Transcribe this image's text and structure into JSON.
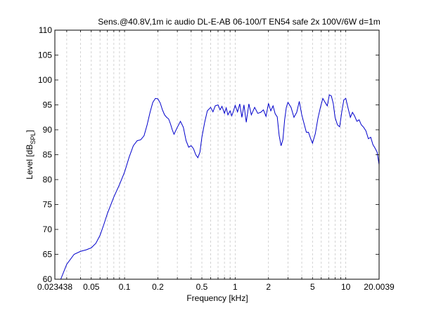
{
  "chart_data": {
    "type": "line",
    "title": "Sens.@40.8V,1m ic audio DL-E-AB 06-100/T EN54 safe 2x 100V/6W d=1m",
    "xlabel": "Frequency [kHz]",
    "ylabel_main": "Level [dB",
    "ylabel_sub": "SPL",
    "ylabel_end": "]",
    "xscale": "log",
    "xlim": [
      0.023438,
      20.0039
    ],
    "ylim": [
      60,
      110
    ],
    "grid": "dashed, x major+minor",
    "x_ticks": [
      0.023438,
      0.05,
      0.1,
      0.2,
      0.5,
      1,
      2,
      5,
      10,
      20.0039
    ],
    "x_tick_labels": [
      "0.023438",
      "0.05",
      "0.1",
      "0.2",
      "0.5",
      "1",
      "2",
      "5",
      "10",
      "20.0039"
    ],
    "y_ticks": [
      60,
      65,
      70,
      75,
      80,
      85,
      90,
      95,
      100,
      105,
      110
    ],
    "y_tick_labels": [
      "60",
      "65",
      "70",
      "75",
      "80",
      "85",
      "90",
      "95",
      "100",
      "105",
      "110"
    ],
    "line_color": "#0000cc",
    "series": [
      {
        "x": [
          0.0265,
          0.03,
          0.035,
          0.04,
          0.045,
          0.05,
          0.055,
          0.06,
          0.065,
          0.07,
          0.08,
          0.09,
          0.1,
          0.11,
          0.12,
          0.13,
          0.14,
          0.15,
          0.16,
          0.17,
          0.18,
          0.19,
          0.2,
          0.21,
          0.22,
          0.23,
          0.24,
          0.25,
          0.26,
          0.27,
          0.28,
          0.3,
          0.32,
          0.34,
          0.36,
          0.38,
          0.4,
          0.42,
          0.44,
          0.46,
          0.48,
          0.5,
          0.53,
          0.56,
          0.6,
          0.63,
          0.66,
          0.7,
          0.73,
          0.76,
          0.8,
          0.83,
          0.86,
          0.9,
          0.93,
          0.96,
          1.0,
          1.05,
          1.1,
          1.15,
          1.2,
          1.26,
          1.33,
          1.4,
          1.5,
          1.6,
          1.7,
          1.8,
          1.9,
          2.0,
          2.1,
          2.2,
          2.3,
          2.4,
          2.5,
          2.6,
          2.7,
          2.8,
          2.9,
          3.0,
          3.2,
          3.4,
          3.6,
          3.8,
          4.0,
          4.2,
          4.4,
          4.6,
          4.8,
          5.0,
          5.3,
          5.6,
          5.9,
          6.2,
          6.5,
          6.8,
          7.1,
          7.4,
          7.7,
          8.0,
          8.4,
          8.8,
          9.2,
          9.6,
          10.0,
          10.5,
          11.0,
          11.5,
          12.0,
          12.6,
          13.2,
          13.8,
          14.5,
          15.2,
          16.0,
          16.8,
          17.6,
          18.4,
          19.2,
          20.0
        ],
        "y": [
          60.0,
          63.0,
          65.0,
          65.6,
          65.9,
          66.3,
          67.2,
          68.8,
          71.0,
          73.2,
          76.5,
          79.0,
          81.5,
          84.5,
          86.8,
          87.8,
          88.0,
          88.8,
          91.0,
          93.5,
          95.5,
          96.3,
          96.2,
          95.4,
          94.0,
          93.0,
          92.5,
          92.2,
          91.2,
          90.0,
          89.1,
          90.5,
          91.7,
          90.5,
          87.8,
          86.5,
          86.8,
          86.2,
          85.0,
          84.4,
          85.5,
          88.5,
          91.5,
          93.8,
          94.5,
          93.6,
          94.8,
          95.0,
          94.0,
          94.7,
          93.3,
          94.4,
          93.0,
          93.8,
          92.8,
          93.6,
          94.9,
          93.6,
          95.2,
          92.5,
          95.0,
          91.5,
          95.2,
          93.0,
          94.5,
          93.3,
          93.5,
          94.0,
          92.7,
          95.3,
          93.8,
          94.8,
          93.2,
          92.6,
          88.8,
          86.8,
          88.0,
          92.0,
          94.5,
          95.5,
          94.5,
          92.5,
          93.5,
          95.7,
          93.0,
          91.2,
          89.5,
          89.5,
          88.3,
          87.3,
          89.2,
          92.3,
          94.5,
          96.3,
          95.5,
          94.8,
          97.0,
          96.8,
          95.3,
          92.5,
          91.0,
          90.6,
          93.6,
          96.0,
          96.3,
          94.3,
          92.5,
          93.5,
          92.8,
          91.7,
          92.0,
          91.0,
          90.5,
          89.8,
          88.2,
          88.5,
          87.0,
          86.3,
          85.5,
          83.0
        ]
      }
    ]
  }
}
